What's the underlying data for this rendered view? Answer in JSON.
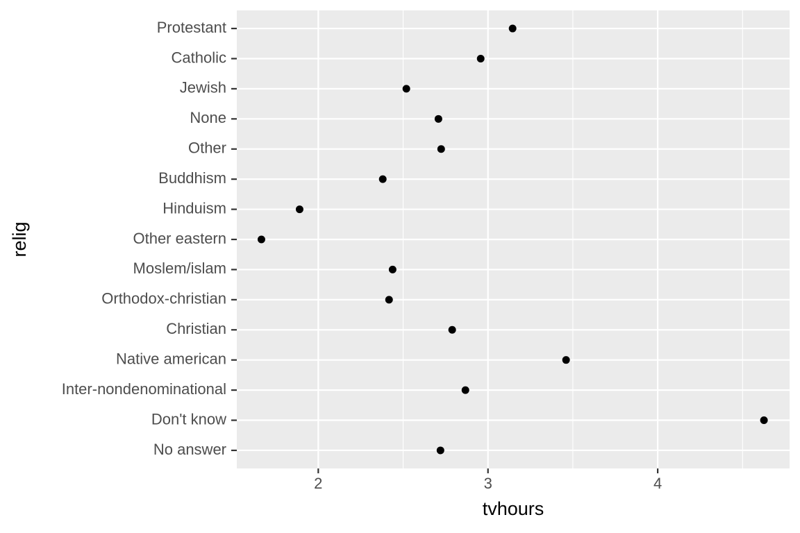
{
  "chart_data": {
    "type": "scatter",
    "x_label": "tvhours",
    "y_label": "relig",
    "categories": [
      "Protestant",
      "Catholic",
      "Jewish",
      "None",
      "Other",
      "Buddhism",
      "Hinduism",
      "Other eastern",
      "Moslem/islam",
      "Orthodox-christian",
      "Christian",
      "Native american",
      "Inter-nondenominational",
      "Don't know",
      "No answer"
    ],
    "values": [
      3.145,
      2.957,
      2.519,
      2.708,
      2.724,
      2.38,
      1.89,
      1.665,
      2.438,
      2.417,
      2.789,
      3.46,
      2.867,
      4.626,
      2.72
    ],
    "color": "#000000",
    "xlim": [
      1.52,
      4.777
    ],
    "xticks": [
      2,
      3,
      4
    ],
    "grid": true
  }
}
